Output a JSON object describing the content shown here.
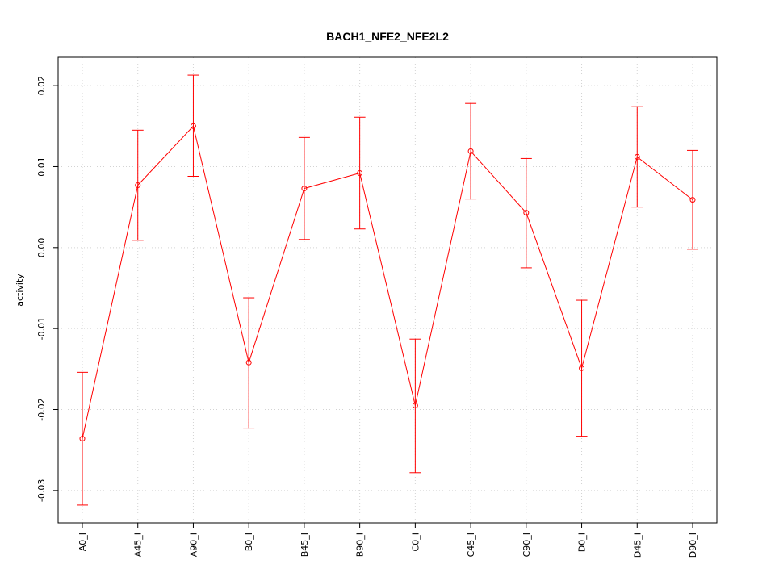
{
  "chart_data": {
    "type": "line",
    "title": "BACH1_NFE2_NFE2L2",
    "xlabel": "",
    "ylabel": "activity",
    "categories": [
      "A0_I",
      "A45_I",
      "A90_I",
      "B0_I",
      "B45_I",
      "B90_I",
      "C0_I",
      "C45_I",
      "C90_I",
      "D0_I",
      "D45_I",
      "D90_I"
    ],
    "series": [
      {
        "values": [
          -0.0236,
          0.0077,
          0.015,
          -0.0142,
          0.0073,
          0.0092,
          -0.0195,
          0.0119,
          0.0043,
          -0.0149,
          0.0112,
          0.0059
        ],
        "lower": [
          -0.0318,
          0.0009,
          0.0088,
          -0.0223,
          0.001,
          0.0023,
          -0.0278,
          0.006,
          -0.0025,
          -0.0233,
          0.005,
          -0.0002
        ],
        "upper": [
          -0.0154,
          0.0145,
          0.0213,
          -0.0062,
          0.0136,
          0.0161,
          -0.0113,
          0.0178,
          0.011,
          -0.0065,
          0.0174,
          0.012
        ]
      }
    ],
    "yticks": [
      -0.03,
      -0.02,
      -0.01,
      0.0,
      0.01,
      0.02
    ],
    "ytick_labels": [
      "-0.03",
      "-0.02",
      "-0.01",
      "0.00",
      "0.01",
      "0.02"
    ],
    "ylim": [
      -0.034,
      0.0235
    ],
    "grid": true,
    "colors": {
      "series": "#ff0000",
      "grid": "#d3d3d3",
      "axis": "#000000"
    }
  }
}
